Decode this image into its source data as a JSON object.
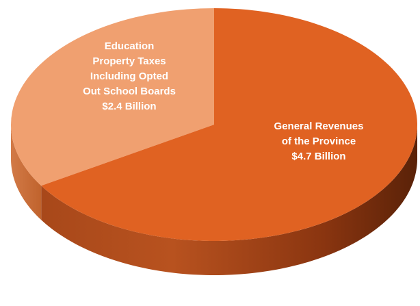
{
  "chart_data": {
    "type": "pie",
    "style": "3d",
    "slices": [
      {
        "label_lines": [
          "Education",
          "Property Taxes",
          "Including Opted",
          "Out School Boards",
          "$2.4 Billion"
        ],
        "value": 2.4,
        "unit": "Billion",
        "color": "#f0a070",
        "side_color": "#c7602a"
      },
      {
        "label_lines": [
          "General Revenues",
          "of the Province",
          "$4.7 Billion"
        ],
        "value": 4.7,
        "unit": "Billion",
        "color": "#e06222",
        "side_color": "#8e3510"
      }
    ]
  }
}
